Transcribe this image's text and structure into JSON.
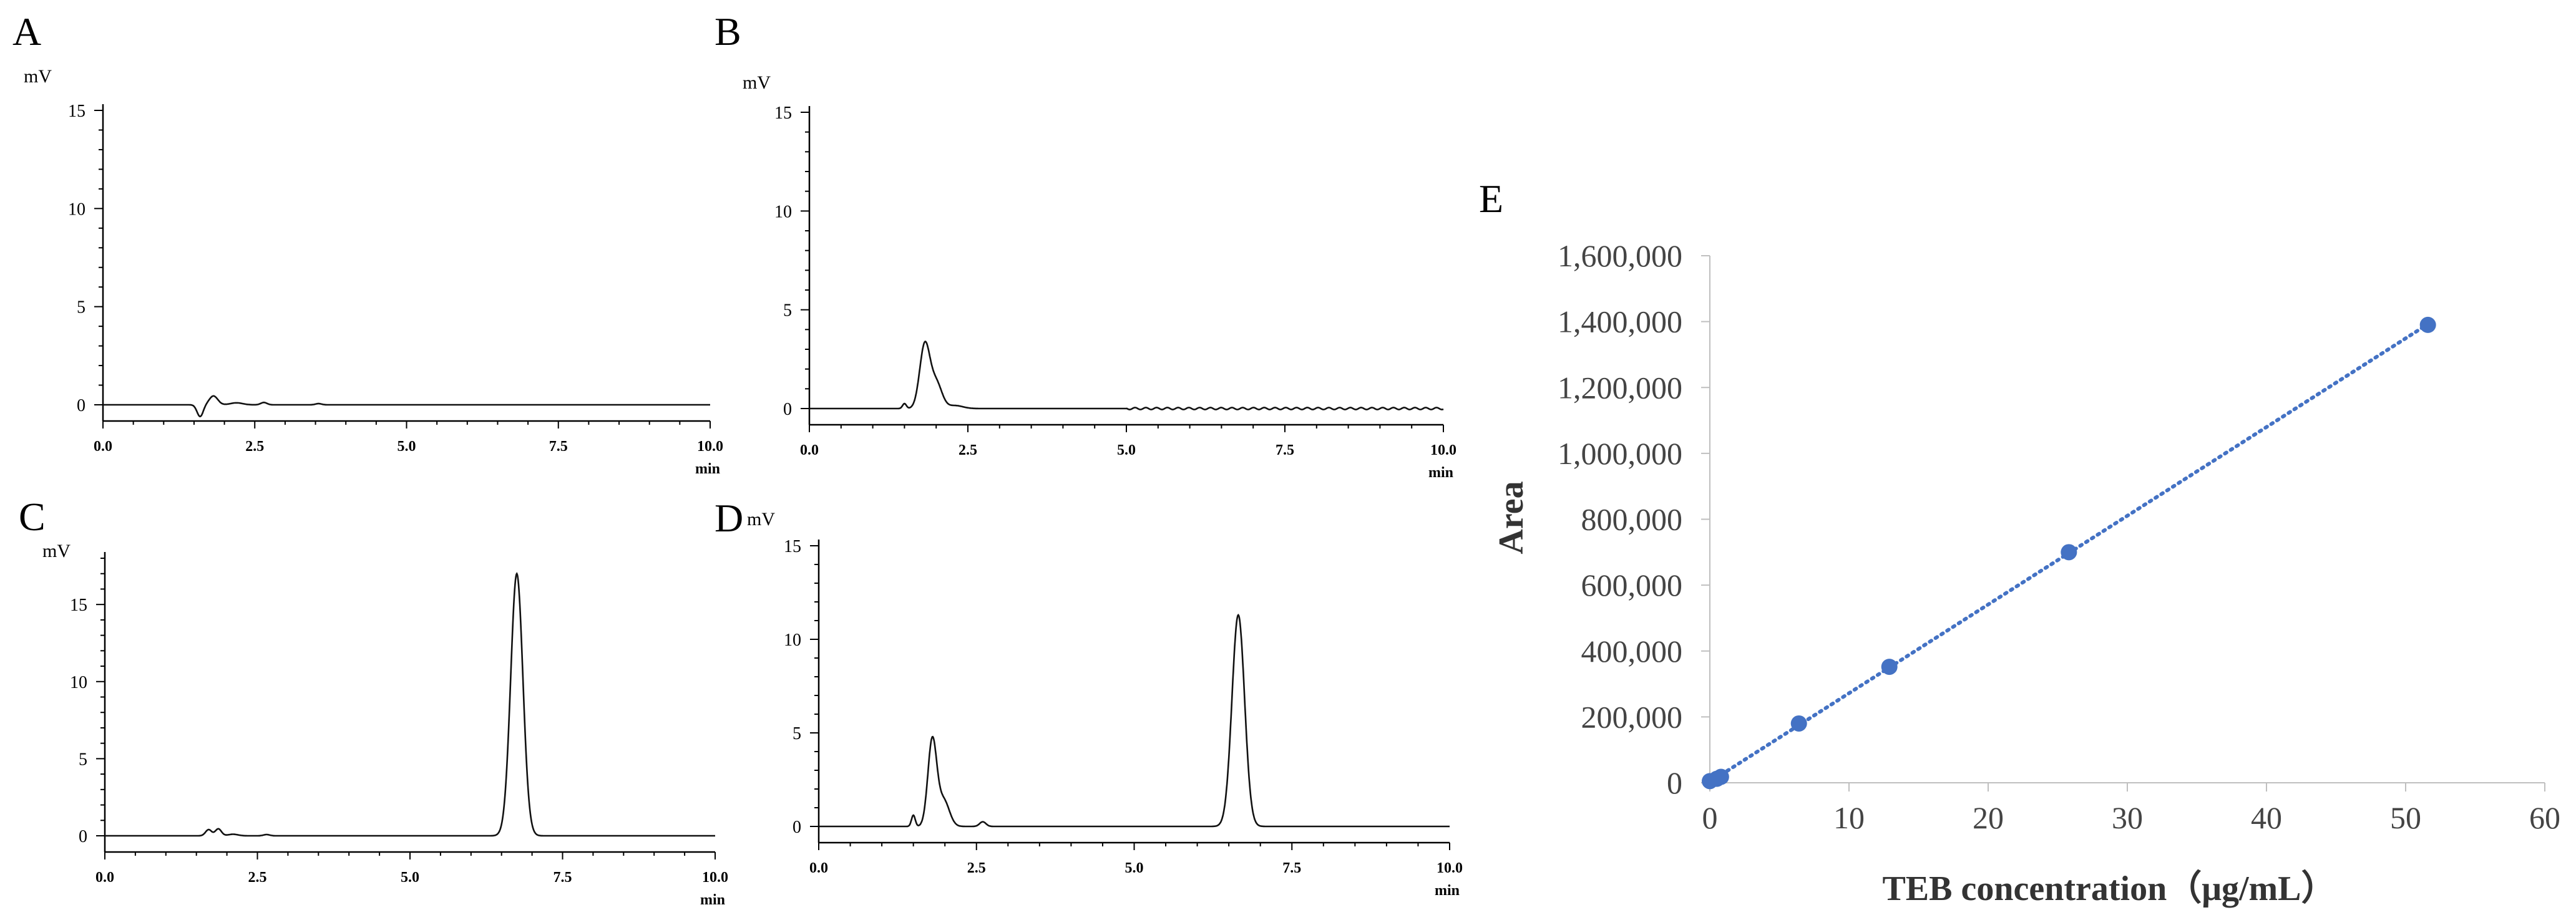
{
  "chart_data": [
    {
      "panel": "A",
      "type": "line",
      "y_unit": "mV",
      "x_unit": "min",
      "xlim": [
        0,
        10
      ],
      "ylim": [
        0,
        15
      ],
      "x_ticks": [
        "0.0",
        "2.5",
        "5.0",
        "7.5",
        "10.0"
      ],
      "y_ticks": [
        "0",
        "5",
        "10",
        "15"
      ],
      "peaks": [
        {
          "rt": 1.6,
          "height": -0.6,
          "width": 0.05
        },
        {
          "rt": 1.82,
          "height": 0.45,
          "width": 0.07
        },
        {
          "rt": 2.2,
          "height": 0.1,
          "width": 0.1
        },
        {
          "rt": 2.65,
          "height": 0.12,
          "width": 0.05
        },
        {
          "rt": 3.55,
          "height": 0.06,
          "width": 0.05
        }
      ]
    },
    {
      "panel": "B",
      "type": "line",
      "y_unit": "mV",
      "x_unit": "min",
      "xlim": [
        0,
        10
      ],
      "ylim": [
        0,
        15
      ],
      "x_ticks": [
        "0.0",
        "2.5",
        "5.0",
        "7.5",
        "10.0"
      ],
      "y_ticks": [
        "0",
        "5",
        "10",
        "15"
      ],
      "peaks": [
        {
          "rt": 1.5,
          "height": 0.25,
          "width": 0.03
        },
        {
          "rt": 1.82,
          "height": 3.2,
          "width": 0.08
        },
        {
          "rt": 2.0,
          "height": 1.3,
          "width": 0.09
        },
        {
          "rt": 2.3,
          "height": 0.15,
          "width": 0.12
        }
      ]
    },
    {
      "panel": "C",
      "type": "line",
      "y_unit": "mV",
      "x_unit": "min",
      "xlim": [
        0,
        10
      ],
      "ylim": [
        0,
        18
      ],
      "x_ticks": [
        "0.0",
        "2.5",
        "5.0",
        "7.5",
        "10.0"
      ],
      "y_ticks": [
        "0",
        "5",
        "10",
        "15"
      ],
      "peaks": [
        {
          "rt": 1.7,
          "height": 0.4,
          "width": 0.05
        },
        {
          "rt": 1.86,
          "height": 0.45,
          "width": 0.05
        },
        {
          "rt": 2.1,
          "height": 0.1,
          "width": 0.08
        },
        {
          "rt": 2.65,
          "height": 0.08,
          "width": 0.05
        },
        {
          "rt": 6.75,
          "height": 17.0,
          "width": 0.1
        }
      ]
    },
    {
      "panel": "D",
      "type": "line",
      "y_unit": "mV",
      "x_unit": "min",
      "xlim": [
        0,
        10
      ],
      "ylim": [
        0,
        15
      ],
      "x_ticks": [
        "0.0",
        "2.5",
        "5.0",
        "7.5",
        "10.0"
      ],
      "y_ticks": [
        "0",
        "5",
        "10",
        "15"
      ],
      "peaks": [
        {
          "rt": 1.5,
          "height": 0.6,
          "width": 0.03
        },
        {
          "rt": 1.8,
          "height": 4.6,
          "width": 0.07
        },
        {
          "rt": 1.98,
          "height": 1.4,
          "width": 0.09
        },
        {
          "rt": 2.6,
          "height": 0.25,
          "width": 0.05
        },
        {
          "rt": 6.65,
          "height": 11.3,
          "width": 0.1
        }
      ]
    },
    {
      "panel": "E",
      "type": "scatter",
      "xlabel": "TEB concentration（μg/mL）",
      "ylabel": "Area",
      "xlim": [
        0,
        60
      ],
      "ylim": [
        0,
        1600000
      ],
      "x_ticks": [
        "0",
        "10",
        "20",
        "30",
        "40",
        "50",
        "60"
      ],
      "y_ticks": [
        "0",
        "200,000",
        "400,000",
        "600,000",
        "800,000",
        "1,000,000",
        "1,200,000",
        "1,400,000",
        "1,600,000"
      ],
      "trendline": "linear, dotted",
      "points": [
        {
          "x": 0.0,
          "y": 5000
        },
        {
          "x": 0.5,
          "y": 12000
        },
        {
          "x": 0.8,
          "y": 18000
        },
        {
          "x": 6.4,
          "y": 180000
        },
        {
          "x": 12.9,
          "y": 352000
        },
        {
          "x": 25.8,
          "y": 700000
        },
        {
          "x": 51.6,
          "y": 1390000
        }
      ],
      "colors": {
        "marker": "#4472c4",
        "trendline": "#4472c4"
      }
    }
  ]
}
